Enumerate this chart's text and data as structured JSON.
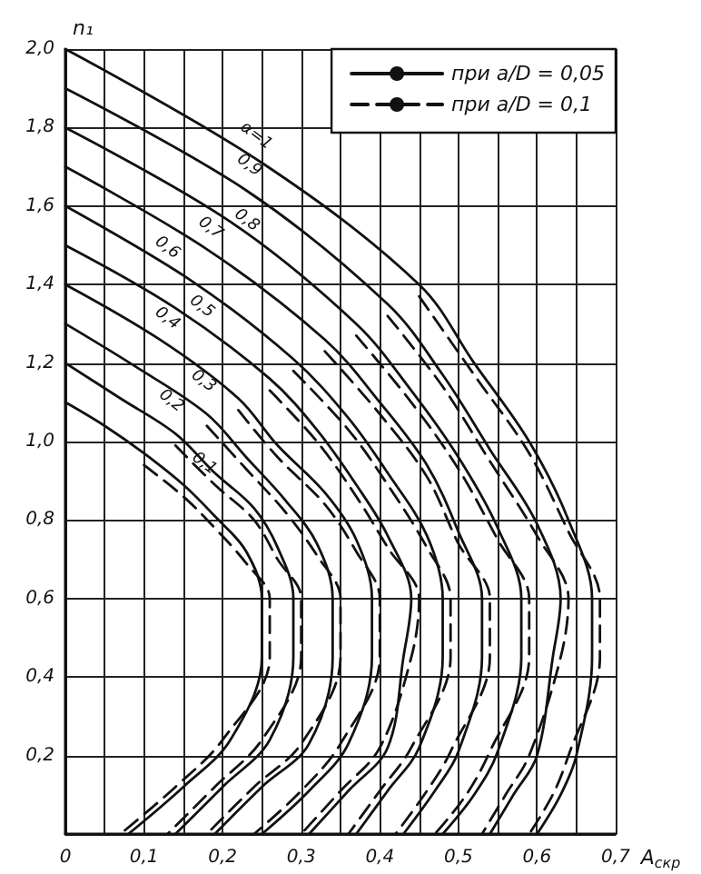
{
  "chart_data": {
    "type": "line",
    "xlabel": "A$_{скр}$",
    "ylabel": "n₁",
    "xlim": [
      0,
      0.7
    ],
    "ylim": [
      0,
      2.0
    ],
    "xticks": [
      {
        "value": 0,
        "label": "0"
      },
      {
        "value": 0.05,
        "label": null
      },
      {
        "value": 0.1,
        "label": "0,1"
      },
      {
        "value": 0.15,
        "label": null
      },
      {
        "value": 0.2,
        "label": "0,2"
      },
      {
        "value": 0.25,
        "label": null
      },
      {
        "value": 0.3,
        "label": "0,3"
      },
      {
        "value": 0.35,
        "label": null
      },
      {
        "value": 0.4,
        "label": "0,4"
      },
      {
        "value": 0.45,
        "label": null
      },
      {
        "value": 0.5,
        "label": "0,5"
      },
      {
        "value": 0.55,
        "label": null
      },
      {
        "value": 0.6,
        "label": "0,6"
      },
      {
        "value": 0.65,
        "label": null
      },
      {
        "value": 0.7,
        "label": "0,7"
      }
    ],
    "yticks": [
      {
        "value": 0.2,
        "label": "0,2"
      },
      {
        "value": 0.4,
        "label": "0,4"
      },
      {
        "value": 0.6,
        "label": "0,6"
      },
      {
        "value": 0.8,
        "label": "0,8"
      },
      {
        "value": 1.0,
        "label": "1,0"
      },
      {
        "value": 1.2,
        "label": "1,2"
      },
      {
        "value": 1.4,
        "label": "1,4"
      },
      {
        "value": 1.6,
        "label": "1,6"
      },
      {
        "value": 1.8,
        "label": "1,8"
      },
      {
        "value": 2.0,
        "label": "2,0"
      }
    ],
    "grid": true,
    "legend": "top right",
    "marker": "none",
    "series": [
      {
        "name": "при a/D = 0,05",
        "color": "#111111",
        "line_style": "solid",
        "x": [
          0,
          0.05,
          0.1,
          0.15,
          0.19,
          0.23,
          0.25,
          0.25,
          0.21,
          0.15,
          0.08
        ],
        "values": [
          1.1,
          1.04,
          0.97,
          0.89,
          0.81,
          0.72,
          0.6,
          0.45,
          0.24,
          0.12,
          0
        ]
      },
      {
        "color": "#111111",
        "line_style": "solid",
        "x": [
          0,
          0.07,
          0.14,
          0.19,
          0.24,
          0.27,
          0.29,
          0.29,
          0.26,
          0.2,
          0.14
        ],
        "values": [
          1.2,
          1.11,
          1.02,
          0.92,
          0.83,
          0.73,
          0.6,
          0.45,
          0.24,
          0.12,
          0
        ]
      },
      {
        "color": "#111111",
        "line_style": "solid",
        "x": [
          0,
          0.09,
          0.18,
          0.23,
          0.28,
          0.32,
          0.34,
          0.34,
          0.31,
          0.25,
          0.19
        ],
        "values": [
          1.3,
          1.19,
          1.07,
          0.96,
          0.85,
          0.74,
          0.6,
          0.45,
          0.23,
          0.12,
          0
        ]
      },
      {
        "color": "#111111",
        "line_style": "solid",
        "x": [
          0,
          0.12,
          0.22,
          0.27,
          0.33,
          0.37,
          0.39,
          0.39,
          0.36,
          0.31,
          0.25
        ],
        "values": [
          1.4,
          1.26,
          1.11,
          0.99,
          0.87,
          0.75,
          0.6,
          0.45,
          0.23,
          0.11,
          0
        ]
      },
      {
        "color": "#111111",
        "line_style": "solid",
        "x": [
          0,
          0.14,
          0.26,
          0.32,
          0.37,
          0.41,
          0.44,
          0.43,
          0.41,
          0.36,
          0.31
        ],
        "values": [
          1.5,
          1.34,
          1.16,
          1.03,
          0.89,
          0.76,
          0.6,
          0.45,
          0.22,
          0.11,
          0
        ]
      },
      {
        "color": "#111111",
        "line_style": "solid",
        "x": [
          0,
          0.16,
          0.29,
          0.36,
          0.41,
          0.46,
          0.48,
          0.48,
          0.45,
          0.41,
          0.37
        ],
        "values": [
          1.6,
          1.41,
          1.21,
          1.06,
          0.92,
          0.76,
          0.6,
          0.45,
          0.22,
          0.11,
          0
        ]
      },
      {
        "color": "#111111",
        "line_style": "solid",
        "x": [
          0,
          0.18,
          0.33,
          0.4,
          0.46,
          0.5,
          0.53,
          0.53,
          0.5,
          0.47,
          0.43
        ],
        "values": [
          1.7,
          1.49,
          1.26,
          1.1,
          0.94,
          0.77,
          0.6,
          0.45,
          0.21,
          0.11,
          0
        ]
      },
      {
        "color": "#111111",
        "line_style": "solid",
        "x": [
          0,
          0.21,
          0.37,
          0.44,
          0.5,
          0.55,
          0.58,
          0.58,
          0.55,
          0.52,
          0.48
        ],
        "values": [
          1.8,
          1.56,
          1.3,
          1.13,
          0.96,
          0.78,
          0.6,
          0.45,
          0.21,
          0.1,
          0
        ]
      },
      {
        "color": "#111111",
        "line_style": "solid",
        "x": [
          0,
          0.23,
          0.41,
          0.48,
          0.54,
          0.6,
          0.63,
          0.62,
          0.6,
          0.57,
          0.54
        ],
        "values": [
          1.9,
          1.64,
          1.35,
          1.17,
          0.98,
          0.79,
          0.6,
          0.45,
          0.2,
          0.1,
          0
        ]
      },
      {
        "color": "#111111",
        "line_style": "solid",
        "x": [
          0,
          0.25,
          0.45,
          0.52,
          0.59,
          0.64,
          0.67,
          0.67,
          0.65,
          0.63,
          0.6
        ],
        "values": [
          2.0,
          1.71,
          1.4,
          1.2,
          1.0,
          0.8,
          0.6,
          0.45,
          0.2,
          0.1,
          0
        ]
      },
      {
        "name": "при a/D = 0,1",
        "color": "#111111",
        "line_style": "dashed",
        "x": [
          0.1,
          0.15,
          0.19,
          0.23,
          0.26,
          0.26,
          0.2,
          0.14,
          0.07
        ],
        "values": [
          0.94,
          0.86,
          0.78,
          0.69,
          0.6,
          0.45,
          0.24,
          0.12,
          0
        ]
      },
      {
        "color": "#111111",
        "line_style": "dashed",
        "x": [
          0.14,
          0.19,
          0.24,
          0.27,
          0.3,
          0.3,
          0.25,
          0.19,
          0.13
        ],
        "values": [
          0.99,
          0.89,
          0.8,
          0.7,
          0.6,
          0.45,
          0.24,
          0.12,
          0
        ]
      },
      {
        "color": "#111111",
        "line_style": "dashed",
        "x": [
          0.18,
          0.23,
          0.28,
          0.32,
          0.35,
          0.35,
          0.3,
          0.24,
          0.18
        ],
        "values": [
          1.04,
          0.93,
          0.82,
          0.71,
          0.6,
          0.45,
          0.23,
          0.12,
          0
        ]
      },
      {
        "color": "#111111",
        "line_style": "dashed",
        "x": [
          0.22,
          0.27,
          0.33,
          0.37,
          0.4,
          0.4,
          0.35,
          0.3,
          0.24
        ],
        "values": [
          1.08,
          0.96,
          0.84,
          0.72,
          0.6,
          0.45,
          0.23,
          0.11,
          0
        ]
      },
      {
        "color": "#111111",
        "line_style": "dashed",
        "x": [
          0.26,
          0.32,
          0.37,
          0.41,
          0.45,
          0.44,
          0.4,
          0.35,
          0.3
        ],
        "values": [
          1.13,
          1.0,
          0.86,
          0.73,
          0.6,
          0.45,
          0.22,
          0.11,
          0
        ]
      },
      {
        "color": "#111111",
        "line_style": "dashed",
        "x": [
          0.29,
          0.36,
          0.41,
          0.46,
          0.49,
          0.49,
          0.44,
          0.4,
          0.36
        ],
        "values": [
          1.18,
          1.03,
          0.89,
          0.73,
          0.6,
          0.45,
          0.22,
          0.11,
          0
        ]
      },
      {
        "color": "#111111",
        "line_style": "dashed",
        "x": [
          0.33,
          0.4,
          0.46,
          0.5,
          0.54,
          0.54,
          0.49,
          0.46,
          0.42
        ],
        "values": [
          1.23,
          1.07,
          0.91,
          0.74,
          0.6,
          0.45,
          0.21,
          0.11,
          0
        ]
      },
      {
        "color": "#111111",
        "line_style": "dashed",
        "x": [
          0.37,
          0.44,
          0.5,
          0.55,
          0.59,
          0.59,
          0.54,
          0.51,
          0.47
        ],
        "values": [
          1.27,
          1.1,
          0.93,
          0.75,
          0.6,
          0.45,
          0.21,
          0.1,
          0
        ]
      },
      {
        "color": "#111111",
        "line_style": "dashed",
        "x": [
          0.41,
          0.48,
          0.54,
          0.6,
          0.64,
          0.63,
          0.59,
          0.56,
          0.53
        ],
        "values": [
          1.32,
          1.14,
          0.95,
          0.76,
          0.6,
          0.45,
          0.2,
          0.1,
          0
        ]
      },
      {
        "color": "#111111",
        "line_style": "dashed",
        "x": [
          0.45,
          0.52,
          0.59,
          0.64,
          0.68,
          0.68,
          0.64,
          0.62,
          0.59
        ],
        "values": [
          1.37,
          1.17,
          0.97,
          0.77,
          0.6,
          0.45,
          0.2,
          0.1,
          0
        ]
      }
    ],
    "annotations": [
      {
        "text": "α=1",
        "x": 0.233,
        "y": 1.745
      },
      {
        "text": "0,9",
        "x": 0.224,
        "y": 1.67
      },
      {
        "text": "0,8",
        "x": 0.221,
        "y": 1.53
      },
      {
        "text": "0,7",
        "x": 0.175,
        "y": 1.51
      },
      {
        "text": "0,6",
        "x": 0.12,
        "y": 1.46
      },
      {
        "text": "0,5",
        "x": 0.164,
        "y": 1.31
      },
      {
        "text": "0,4",
        "x": 0.12,
        "y": 1.28
      },
      {
        "text": "0,3",
        "x": 0.166,
        "y": 1.12
      },
      {
        "text": "0,2",
        "x": 0.125,
        "y": 1.07
      },
      {
        "text": "0,1",
        "x": 0.167,
        "y": 0.91
      }
    ]
  }
}
